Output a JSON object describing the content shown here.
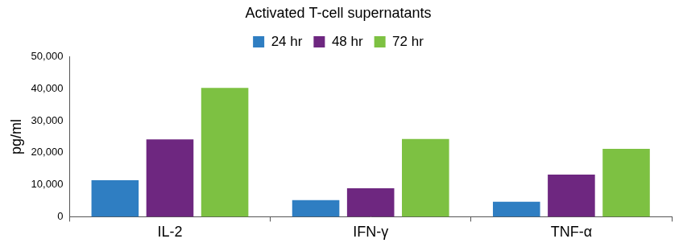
{
  "chart_data": {
    "type": "bar",
    "title": "Activated T-cell supernatants",
    "y_label": "pg/ml",
    "categories": [
      "IL-2",
      "IFN-γ",
      "TNF-α"
    ],
    "series": [
      {
        "name": "24 hr",
        "color": "#2f7ec2",
        "values": [
          11400,
          5200,
          4700
        ]
      },
      {
        "name": "48 hr",
        "color": "#6e2780",
        "values": [
          24200,
          8900,
          13200
        ]
      },
      {
        "name": "72 hr",
        "color": "#7dc142",
        "values": [
          40300,
          24300,
          21200
        ]
      }
    ],
    "ylim": [
      0,
      50000
    ],
    "yticks": [
      0,
      {
        "value": 10000,
        "label": "10,000"
      },
      {
        "value": 20000,
        "label": "20,000"
      },
      {
        "value": 30000,
        "label": "30,000"
      },
      {
        "value": 40000,
        "label": "40,000"
      },
      {
        "value": 50000,
        "label": "50,000"
      }
    ],
    "grid": false,
    "legend": "top"
  }
}
